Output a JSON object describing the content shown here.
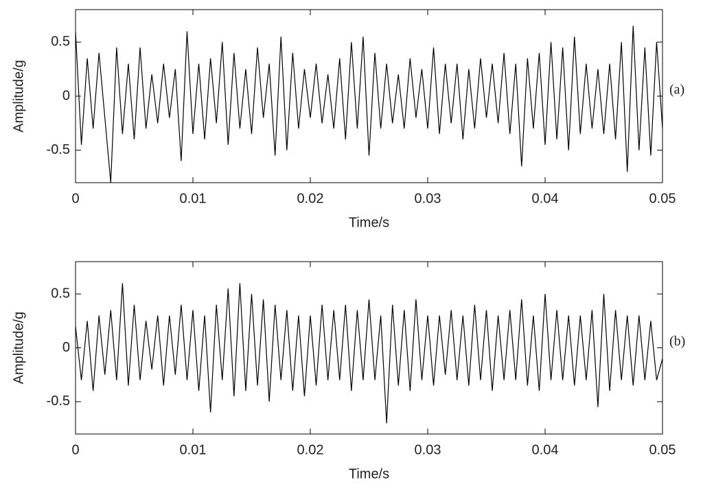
{
  "chart_data": [
    {
      "type": "line",
      "annotation": "(a)",
      "xlabel": "Time/s",
      "ylabel": "Amplitude/g",
      "color": "#000000",
      "xlim": [
        0,
        0.05
      ],
      "xticks": [
        0,
        0.01,
        0.02,
        0.03,
        0.04,
        0.05
      ],
      "ylim": [
        -0.8,
        0.8
      ],
      "yticks": [
        -0.5,
        0,
        0.5
      ],
      "x": [
        0,
        0.0005,
        0.001,
        0.0015,
        0.002,
        0.0025,
        0.003,
        0.0035,
        0.004,
        0.0045,
        0.005,
        0.0055,
        0.006,
        0.0065,
        0.007,
        0.0075,
        0.008,
        0.0085,
        0.009,
        0.0095,
        0.01,
        0.0105,
        0.011,
        0.0115,
        0.012,
        0.0125,
        0.013,
        0.0135,
        0.014,
        0.0145,
        0.015,
        0.0155,
        0.016,
        0.0165,
        0.017,
        0.0175,
        0.018,
        0.0185,
        0.019,
        0.0195,
        0.02,
        0.0205,
        0.021,
        0.0215,
        0.022,
        0.0225,
        0.023,
        0.0235,
        0.024,
        0.0245,
        0.025,
        0.0255,
        0.026,
        0.0265,
        0.027,
        0.0275,
        0.028,
        0.0285,
        0.029,
        0.0295,
        0.03,
        0.0305,
        0.031,
        0.0315,
        0.032,
        0.0325,
        0.033,
        0.0335,
        0.034,
        0.0345,
        0.035,
        0.0355,
        0.036,
        0.0365,
        0.037,
        0.0375,
        0.038,
        0.0385,
        0.039,
        0.0395,
        0.04,
        0.0405,
        0.041,
        0.0415,
        0.042,
        0.0425,
        0.043,
        0.0435,
        0.044,
        0.0445,
        0.045,
        0.0455,
        0.046,
        0.0465,
        0.047,
        0.0475,
        0.048,
        0.0485,
        0.049,
        0.0495,
        0.05
      ],
      "values": [
        0.6,
        -0.45,
        0.35,
        -0.3,
        0.4,
        -0.2,
        -0.8,
        0.45,
        -0.35,
        0.3,
        -0.4,
        0.45,
        -0.3,
        0.2,
        -0.25,
        0.3,
        -0.2,
        0.25,
        -0.6,
        0.6,
        -0.35,
        0.3,
        -0.4,
        0.35,
        -0.25,
        0.5,
        -0.45,
        0.4,
        -0.3,
        0.25,
        -0.35,
        0.45,
        -0.2,
        0.3,
        -0.55,
        0.55,
        -0.5,
        0.4,
        -0.3,
        0.25,
        -0.2,
        0.3,
        -0.25,
        0.2,
        -0.3,
        0.35,
        -0.4,
        0.5,
        -0.3,
        0.55,
        -0.55,
        0.4,
        -0.3,
        0.3,
        -0.25,
        0.2,
        -0.3,
        0.35,
        -0.2,
        0.25,
        -0.3,
        0.45,
        -0.35,
        0.3,
        -0.25,
        0.3,
        -0.4,
        0.25,
        -0.3,
        0.35,
        -0.2,
        0.3,
        -0.25,
        0.4,
        -0.35,
        0.3,
        -0.65,
        0.35,
        -0.3,
        0.4,
        -0.45,
        0.5,
        -0.4,
        0.45,
        -0.5,
        0.55,
        -0.35,
        0.3,
        -0.3,
        0.25,
        -0.35,
        0.3,
        -0.4,
        0.5,
        -0.7,
        0.65,
        -0.5,
        0.45,
        -0.55,
        0.5,
        -0.3
      ]
    },
    {
      "type": "line",
      "annotation": "(b)",
      "xlabel": "Time/s",
      "ylabel": "Amplitude/g",
      "color": "#000000",
      "xlim": [
        0,
        0.05
      ],
      "xticks": [
        0,
        0.01,
        0.02,
        0.03,
        0.04,
        0.05
      ],
      "ylim": [
        -0.8,
        0.8
      ],
      "yticks": [
        -0.5,
        0,
        0.5
      ],
      "x": [
        0,
        0.0005,
        0.001,
        0.0015,
        0.002,
        0.0025,
        0.003,
        0.0035,
        0.004,
        0.0045,
        0.005,
        0.0055,
        0.006,
        0.0065,
        0.007,
        0.0075,
        0.008,
        0.0085,
        0.009,
        0.0095,
        0.01,
        0.0105,
        0.011,
        0.0115,
        0.012,
        0.0125,
        0.013,
        0.0135,
        0.014,
        0.0145,
        0.015,
        0.0155,
        0.016,
        0.0165,
        0.017,
        0.0175,
        0.018,
        0.0185,
        0.019,
        0.0195,
        0.02,
        0.0205,
        0.021,
        0.0215,
        0.022,
        0.0225,
        0.023,
        0.0235,
        0.024,
        0.0245,
        0.025,
        0.0255,
        0.026,
        0.0265,
        0.027,
        0.0275,
        0.028,
        0.0285,
        0.029,
        0.0295,
        0.03,
        0.0305,
        0.031,
        0.0315,
        0.032,
        0.0325,
        0.033,
        0.0335,
        0.034,
        0.0345,
        0.035,
        0.0355,
        0.036,
        0.0365,
        0.037,
        0.0375,
        0.038,
        0.0385,
        0.039,
        0.0395,
        0.04,
        0.0405,
        0.041,
        0.0415,
        0.042,
        0.0425,
        0.043,
        0.0435,
        0.044,
        0.0445,
        0.045,
        0.0455,
        0.046,
        0.0465,
        0.047,
        0.0475,
        0.048,
        0.0485,
        0.049,
        0.0495,
        0.05
      ],
      "values": [
        0.2,
        -0.3,
        0.25,
        -0.4,
        0.3,
        -0.25,
        0.35,
        -0.3,
        0.6,
        -0.35,
        0.4,
        -0.3,
        0.25,
        -0.2,
        0.3,
        -0.35,
        0.3,
        -0.25,
        0.4,
        -0.3,
        0.35,
        -0.4,
        0.3,
        -0.6,
        0.4,
        -0.3,
        0.55,
        -0.45,
        0.6,
        -0.4,
        0.5,
        -0.35,
        0.45,
        -0.5,
        0.4,
        -0.3,
        0.35,
        -0.4,
        0.3,
        -0.45,
        0.3,
        -0.35,
        0.4,
        -0.3,
        0.35,
        -0.3,
        0.4,
        -0.4,
        0.35,
        -0.3,
        0.45,
        -0.3,
        0.3,
        -0.7,
        0.4,
        -0.35,
        0.35,
        -0.4,
        0.45,
        -0.3,
        0.3,
        -0.35,
        0.3,
        -0.25,
        0.35,
        -0.3,
        0.3,
        -0.35,
        0.4,
        -0.3,
        0.35,
        -0.4,
        0.3,
        -0.3,
        0.35,
        -0.3,
        0.45,
        -0.35,
        0.3,
        -0.4,
        0.5,
        -0.3,
        0.35,
        -0.3,
        0.3,
        -0.35,
        0.3,
        -0.3,
        0.35,
        -0.55,
        0.5,
        -0.4,
        0.35,
        -0.3,
        0.3,
        -0.35,
        0.3,
        -0.3,
        0.25,
        -0.3,
        -0.1
      ]
    }
  ]
}
